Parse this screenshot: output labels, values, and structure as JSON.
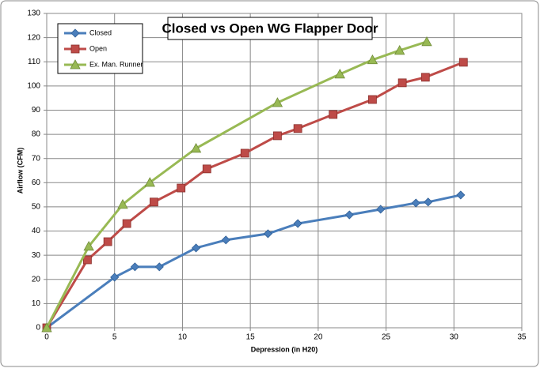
{
  "chart_data": {
    "type": "line",
    "title": "Closed vs Open WG Flapper Door",
    "x_label": "Depression (in H20)",
    "y_label": "Airflow (CFM)",
    "xlim": [
      0,
      35
    ],
    "xticks": [
      0,
      5,
      10,
      15,
      20,
      25,
      30,
      35
    ],
    "ylim": [
      0,
      130
    ],
    "yticks": [
      0,
      10,
      20,
      30,
      40,
      50,
      60,
      70,
      80,
      90,
      100,
      110,
      120,
      130
    ],
    "grid": true,
    "legend": "upper left",
    "series": [
      {
        "name": "Closed",
        "color": "#4a7ebb",
        "marker": "diamond",
        "x": [
          0,
          5.0,
          6.5,
          8.3,
          11.0,
          13.2,
          16.3,
          18.5,
          22.3,
          24.6,
          27.2,
          28.1,
          30.5
        ],
        "values": [
          0,
          20.9,
          25.2,
          25.2,
          33,
          36.3,
          38.9,
          43.1,
          46.7,
          49,
          51.6,
          52,
          54.9
        ]
      },
      {
        "name": "Open",
        "color": "#be4b48",
        "marker": "square",
        "x": [
          0,
          3.0,
          4.5,
          5.9,
          7.9,
          9.9,
          11.8,
          14.6,
          17.0,
          18.5,
          21.1,
          24.0,
          26.2,
          27.9,
          30.7
        ],
        "values": [
          0,
          28.1,
          35.6,
          43.1,
          52,
          57.8,
          65.7,
          72.2,
          79.4,
          82.4,
          88.2,
          94.4,
          101.3,
          103.6,
          109.8
        ]
      },
      {
        "name": "Ex. Man. Runner",
        "color": "#98b954",
        "marker": "triangle",
        "x": [
          0,
          3.1,
          5.6,
          7.6,
          11.0,
          17.0,
          21.6,
          24.0,
          26.0,
          28.0
        ],
        "values": [
          0,
          33.7,
          51,
          60.1,
          74.2,
          93.1,
          104.9,
          110.8,
          114.7,
          118.3
        ]
      }
    ]
  }
}
